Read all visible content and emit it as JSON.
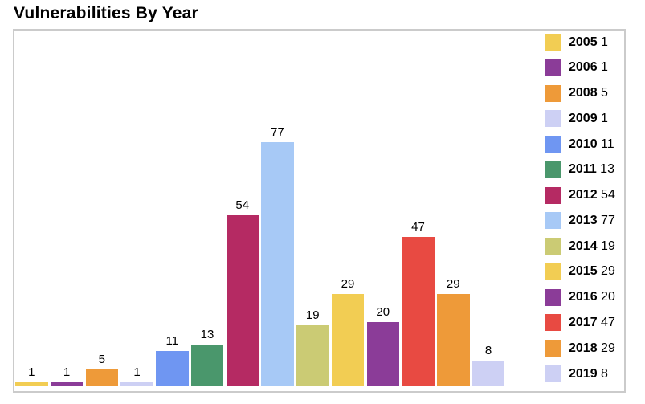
{
  "header": {
    "title": "Vulnerabilities By Year"
  },
  "colors": {
    "background": "#ffffff",
    "chart_border": "#cbcbcb",
    "text": "#000000"
  },
  "chart_data": {
    "type": "bar",
    "title": "Vulnerabilities By Year",
    "categories": [
      "2005",
      "2006",
      "2008",
      "2009",
      "2010",
      "2011",
      "2012",
      "2013",
      "2014",
      "2015",
      "2016",
      "2017",
      "2018",
      "2019"
    ],
    "values": [
      1,
      1,
      5,
      1,
      11,
      13,
      54,
      77,
      19,
      29,
      20,
      47,
      29,
      8
    ],
    "points": [
      {
        "label": "2005",
        "value": 1,
        "color": "#f2cd53"
      },
      {
        "label": "2006",
        "value": 1,
        "color": "#8b3c98"
      },
      {
        "label": "2008",
        "value": 5,
        "color": "#ee9a39"
      },
      {
        "label": "2009",
        "value": 1,
        "color": "#cdd0f4"
      },
      {
        "label": "2010",
        "value": 11,
        "color": "#6f96f2"
      },
      {
        "label": "2011",
        "value": 13,
        "color": "#4a976c"
      },
      {
        "label": "2012",
        "value": 54,
        "color": "#b52a63"
      },
      {
        "label": "2013",
        "value": 77,
        "color": "#a7c9f6"
      },
      {
        "label": "2014",
        "value": 19,
        "color": "#cbcb74"
      },
      {
        "label": "2015",
        "value": 29,
        "color": "#f2cd53"
      },
      {
        "label": "2016",
        "value": 20,
        "color": "#8b3c98"
      },
      {
        "label": "2017",
        "value": 47,
        "color": "#e84a42"
      },
      {
        "label": "2018",
        "value": 29,
        "color": "#ee9a39"
      },
      {
        "label": "2019",
        "value": 8,
        "color": "#cdd0f4"
      }
    ],
    "xlabel": "",
    "ylabel": "",
    "ylim": [
      0,
      85
    ],
    "grid": false,
    "axes_visible": false,
    "bar_value_labels_shown": true,
    "legend_position": "right-inside"
  }
}
